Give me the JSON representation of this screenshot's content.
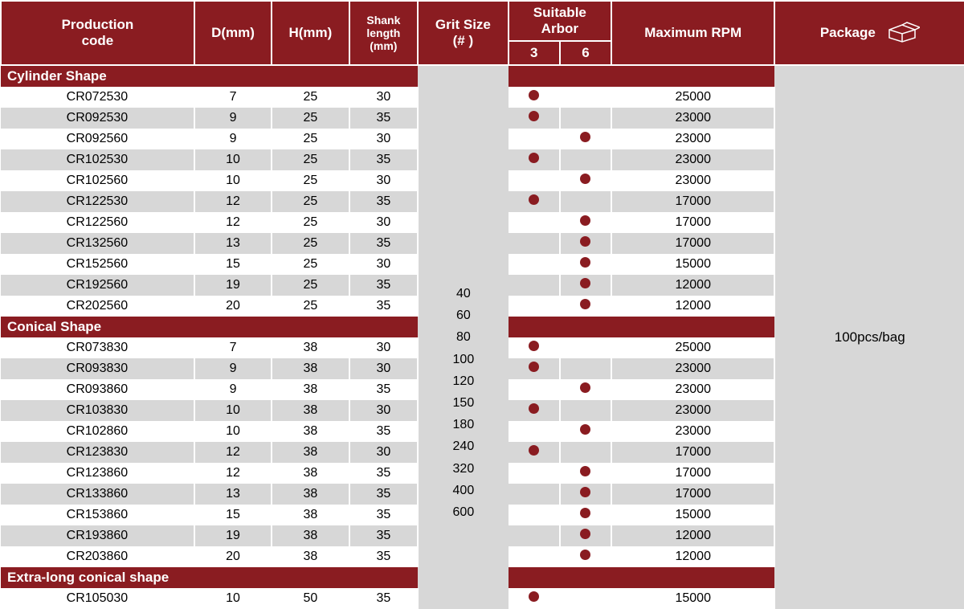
{
  "colors": {
    "header_bg": "#8a1c21",
    "alt_row": "#d7d7d7",
    "dot": "#8a1c21"
  },
  "header": {
    "code": "Production\ncode",
    "d": "D(mm)",
    "h": "H(mm)",
    "shank": "Shank length (mm)",
    "grit": "Grit Size\n(# )",
    "arbor": "Suitable Arbor",
    "a3": "3",
    "a6": "6",
    "rpm": "Maximum RPM",
    "pkg": "Package"
  },
  "gritSizes": [
    "40",
    "60",
    "80",
    "100",
    "120",
    "150",
    "180",
    "240",
    "320",
    "400",
    "600"
  ],
  "package": "100pcs/bag",
  "sections": [
    {
      "title": "Cylinder Shape",
      "rows": [
        {
          "code": "CR072530",
          "d": "7",
          "h": "25",
          "sl": "30",
          "a3": true,
          "a6": false,
          "rpm": "25000"
        },
        {
          "code": "CR092530",
          "d": "9",
          "h": "25",
          "sl": "35",
          "a3": true,
          "a6": false,
          "rpm": "23000"
        },
        {
          "code": "CR092560",
          "d": "9",
          "h": "25",
          "sl": "30",
          "a3": false,
          "a6": true,
          "rpm": "23000"
        },
        {
          "code": "CR102530",
          "d": "10",
          "h": "25",
          "sl": "35",
          "a3": true,
          "a6": false,
          "rpm": "23000"
        },
        {
          "code": "CR102560",
          "d": "10",
          "h": "25",
          "sl": "30",
          "a3": false,
          "a6": true,
          "rpm": "23000"
        },
        {
          "code": "CR122530",
          "d": "12",
          "h": "25",
          "sl": "35",
          "a3": true,
          "a6": false,
          "rpm": "17000"
        },
        {
          "code": "CR122560",
          "d": "12",
          "h": "25",
          "sl": "30",
          "a3": false,
          "a6": true,
          "rpm": "17000"
        },
        {
          "code": "CR132560",
          "d": "13",
          "h": "25",
          "sl": "35",
          "a3": false,
          "a6": true,
          "rpm": "17000"
        },
        {
          "code": "CR152560",
          "d": "15",
          "h": "25",
          "sl": "30",
          "a3": false,
          "a6": true,
          "rpm": "15000"
        },
        {
          "code": "CR192560",
          "d": "19",
          "h": "25",
          "sl": "35",
          "a3": false,
          "a6": true,
          "rpm": "12000"
        },
        {
          "code": "CR202560",
          "d": "20",
          "h": "25",
          "sl": "35",
          "a3": false,
          "a6": true,
          "rpm": "12000"
        }
      ]
    },
    {
      "title": "Conical Shape",
      "rows": [
        {
          "code": "CR073830",
          "d": "7",
          "h": "38",
          "sl": "30",
          "a3": true,
          "a6": false,
          "rpm": "25000"
        },
        {
          "code": "CR093830",
          "d": "9",
          "h": "38",
          "sl": "30",
          "a3": true,
          "a6": false,
          "rpm": "23000"
        },
        {
          "code": "CR093860",
          "d": "9",
          "h": "38",
          "sl": "35",
          "a3": false,
          "a6": true,
          "rpm": "23000"
        },
        {
          "code": "CR103830",
          "d": "10",
          "h": "38",
          "sl": "30",
          "a3": true,
          "a6": false,
          "rpm": "23000"
        },
        {
          "code": "CR102860",
          "d": "10",
          "h": "38",
          "sl": "35",
          "a3": false,
          "a6": true,
          "rpm": "23000"
        },
        {
          "code": "CR123830",
          "d": "12",
          "h": "38",
          "sl": "30",
          "a3": true,
          "a6": false,
          "rpm": "17000"
        },
        {
          "code": "CR123860",
          "d": "12",
          "h": "38",
          "sl": "35",
          "a3": false,
          "a6": true,
          "rpm": "17000"
        },
        {
          "code": "CR133860",
          "d": "13",
          "h": "38",
          "sl": "35",
          "a3": false,
          "a6": true,
          "rpm": "17000"
        },
        {
          "code": "CR153860",
          "d": "15",
          "h": "38",
          "sl": "35",
          "a3": false,
          "a6": true,
          "rpm": "15000"
        },
        {
          "code": "CR193860",
          "d": "19",
          "h": "38",
          "sl": "35",
          "a3": false,
          "a6": true,
          "rpm": "12000"
        },
        {
          "code": "CR203860",
          "d": "20",
          "h": "38",
          "sl": "35",
          "a3": false,
          "a6": true,
          "rpm": "12000"
        }
      ]
    },
    {
      "title": "Extra-long conical shape",
      "rows": [
        {
          "code": "CR105030",
          "d": "10",
          "h": "50",
          "sl": "35",
          "a3": true,
          "a6": false,
          "rpm": "15000"
        }
      ]
    }
  ]
}
